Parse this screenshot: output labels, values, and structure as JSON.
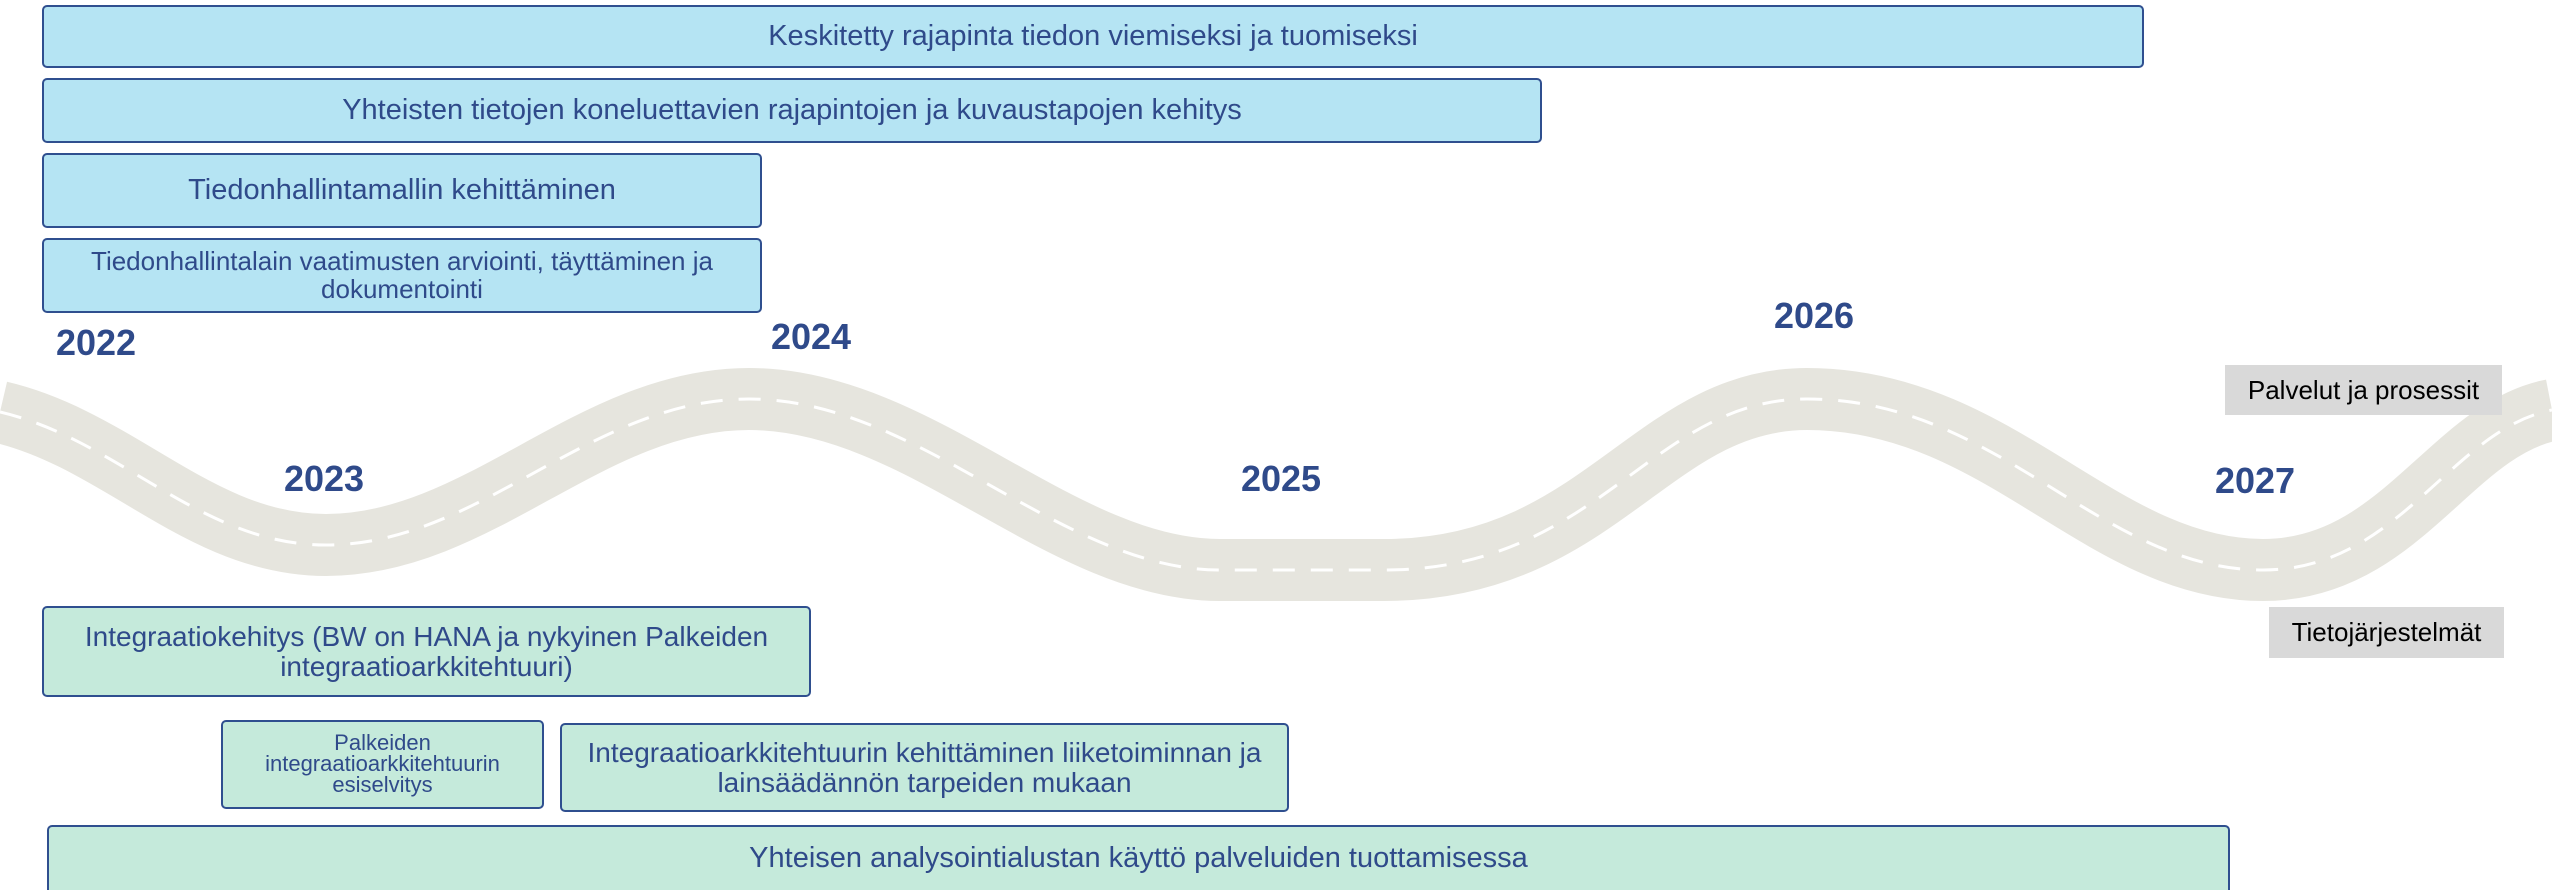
{
  "services_bars": [
    "Keskitetty rajapinta tiedon viemiseksi ja tuomiseksi",
    "Yhteisten tietojen koneluettavien rajapintojen ja kuvaustapojen kehitys",
    "Tiedonhallintamallin kehittäminen",
    "Tiedonhallintalain vaatimusten arviointi, täyttäminen ja dokumentointi"
  ],
  "years": [
    "2022",
    "2023",
    "2024",
    "2025",
    "2026",
    "2027"
  ],
  "legend": {
    "services": "Palvelut ja prosessit",
    "systems": "Tietojärjestelmät"
  },
  "systems_bars": [
    "Integraatiokehitys (BW on HANA ja nykyinen Palkeiden integraatioarkkitehtuuri)",
    "Palkeiden integraatioarkkitehtuurin esiselvitys",
    "Integraatioarkkitehtuurin kehittäminen liiketoiminnan ja lainsäädännön tarpeiden mukaan",
    "Yhteisen analysointialustan käyttö palveluiden tuottamisessa"
  ]
}
